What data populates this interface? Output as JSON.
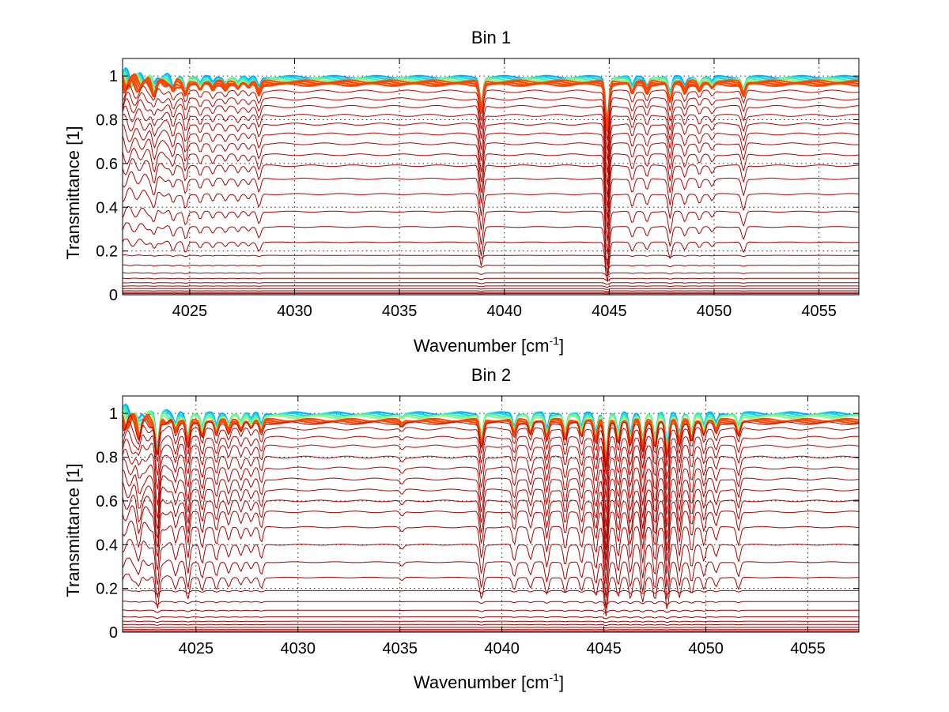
{
  "chart_data": [
    {
      "type": "line",
      "title": "Bin 1",
      "xlabel": "Wavenumber [cm",
      "xlabel_unit_exponent": "-1",
      "xlabel_suffix": "]",
      "ylabel": "Transmittance [1]",
      "xlim": [
        4021.8,
        4056.9
      ],
      "ylim": [
        0,
        1.08
      ],
      "xticks": [
        "4025",
        "4030",
        "4035",
        "4040",
        "4045",
        "4050",
        "4055"
      ],
      "xtick_values": [
        4025,
        4030,
        4035,
        4040,
        4045,
        4050,
        4055
      ],
      "yticks": [
        "0",
        "0.2",
        "0.4",
        "0.6",
        "0.8",
        "1"
      ],
      "ytick_values": [
        0,
        0.2,
        0.4,
        0.6,
        0.8,
        1
      ],
      "grid": true,
      "series_baselines": [
        0.995,
        0.99,
        0.985,
        0.98,
        0.975,
        0.97,
        0.965,
        0.96,
        0.93,
        0.895,
        0.86,
        0.82,
        0.78,
        0.735,
        0.69,
        0.64,
        0.59,
        0.53,
        0.46,
        0.38,
        0.31,
        0.24,
        0.18,
        0.135,
        0.1,
        0.075,
        0.055,
        0.04,
        0.028,
        0.018,
        0.01,
        0.005
      ],
      "absorption_lines": [
        {
          "x": 4023.3,
          "depth": 0.12
        },
        {
          "x": 4024.2,
          "depth": 0.1
        },
        {
          "x": 4024.8,
          "depth": 0.14
        },
        {
          "x": 4025.5,
          "depth": 0.08
        },
        {
          "x": 4026.1,
          "depth": 0.07
        },
        {
          "x": 4026.7,
          "depth": 0.06
        },
        {
          "x": 4027.3,
          "depth": 0.06
        },
        {
          "x": 4027.8,
          "depth": 0.05
        },
        {
          "x": 4028.3,
          "depth": 0.12
        },
        {
          "x": 4038.9,
          "depth": 0.32
        },
        {
          "x": 4044.9,
          "depth": 0.55
        },
        {
          "x": 4046.1,
          "depth": 0.12
        },
        {
          "x": 4046.8,
          "depth": 0.1
        },
        {
          "x": 4047.9,
          "depth": 0.22
        },
        {
          "x": 4048.6,
          "depth": 0.1
        },
        {
          "x": 4049.3,
          "depth": 0.08
        },
        {
          "x": 4049.9,
          "depth": 0.06
        },
        {
          "x": 4051.4,
          "depth": 0.14
        }
      ],
      "colors": [
        "#00008f",
        "#0050ff",
        "#00cfff",
        "#7fff7f",
        "#ffcf00",
        "#ff5000",
        "#ee1100",
        "#8f0000"
      ]
    },
    {
      "type": "line",
      "title": "Bin 2",
      "xlabel": "Wavenumber [cm",
      "xlabel_unit_exponent": "-1",
      "xlabel_suffix": "]",
      "ylabel": "Transmittance [1]",
      "xlim": [
        4021.4,
        4057.5
      ],
      "ylim": [
        0,
        1.08
      ],
      "xticks": [
        "4025",
        "4030",
        "4035",
        "4040",
        "4045",
        "4050",
        "4055"
      ],
      "xtick_values": [
        4025,
        4030,
        4035,
        4040,
        4045,
        4050,
        4055
      ],
      "yticks": [
        "0",
        "0.2",
        "0.4",
        "0.6",
        "0.8",
        "1"
      ],
      "ytick_values": [
        0,
        0.2,
        0.4,
        0.6,
        0.8,
        1
      ],
      "grid": true,
      "series_baselines": [
        1.0,
        0.995,
        0.99,
        0.985,
        0.97,
        0.965,
        0.96,
        0.955,
        0.93,
        0.89,
        0.85,
        0.8,
        0.75,
        0.7,
        0.65,
        0.6,
        0.55,
        0.48,
        0.4,
        0.32,
        0.25,
        0.19,
        0.14,
        0.1,
        0.07,
        0.05,
        0.035,
        0.022,
        0.012,
        0.005
      ],
      "absorption_lines": [
        {
          "x": 4022.2,
          "depth": 0.14
        },
        {
          "x": 4023.1,
          "depth": 0.42
        },
        {
          "x": 4024.0,
          "depth": 0.14
        },
        {
          "x": 4024.6,
          "depth": 0.28
        },
        {
          "x": 4025.3,
          "depth": 0.18
        },
        {
          "x": 4026.0,
          "depth": 0.16
        },
        {
          "x": 4026.6,
          "depth": 0.12
        },
        {
          "x": 4027.2,
          "depth": 0.1
        },
        {
          "x": 4027.7,
          "depth": 0.08
        },
        {
          "x": 4028.2,
          "depth": 0.14
        },
        {
          "x": 4035.1,
          "depth": 0.04
        },
        {
          "x": 4039.0,
          "depth": 0.28
        },
        {
          "x": 4040.6,
          "depth": 0.16
        },
        {
          "x": 4041.4,
          "depth": 0.14
        },
        {
          "x": 4042.2,
          "depth": 0.22
        },
        {
          "x": 4043.1,
          "depth": 0.2
        },
        {
          "x": 4043.9,
          "depth": 0.18
        },
        {
          "x": 4044.6,
          "depth": 0.24
        },
        {
          "x": 4045.1,
          "depth": 0.5
        },
        {
          "x": 4045.7,
          "depth": 0.26
        },
        {
          "x": 4046.3,
          "depth": 0.28
        },
        {
          "x": 4046.9,
          "depth": 0.32
        },
        {
          "x": 4047.5,
          "depth": 0.3
        },
        {
          "x": 4048.1,
          "depth": 0.42
        },
        {
          "x": 4048.7,
          "depth": 0.26
        },
        {
          "x": 4049.3,
          "depth": 0.22
        },
        {
          "x": 4049.9,
          "depth": 0.16
        },
        {
          "x": 4050.5,
          "depth": 0.12
        },
        {
          "x": 4051.6,
          "depth": 0.16
        }
      ],
      "colors": [
        "#00008f",
        "#0050ff",
        "#00cfff",
        "#7fff7f",
        "#ffcf00",
        "#ff5000",
        "#ee1100",
        "#8f0000"
      ]
    }
  ]
}
